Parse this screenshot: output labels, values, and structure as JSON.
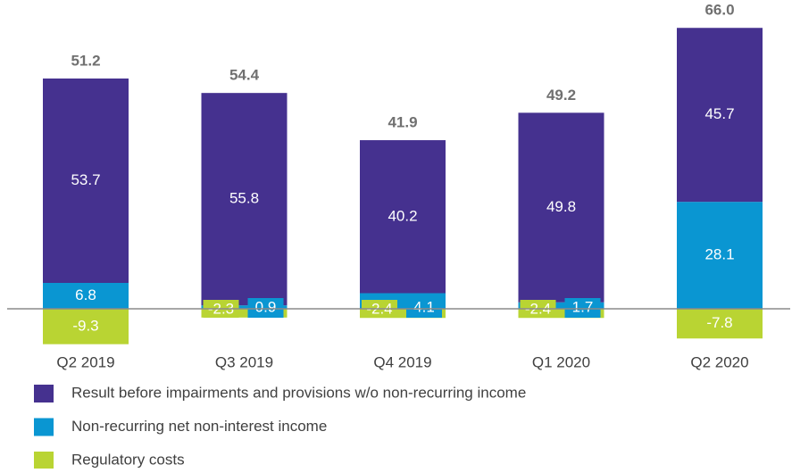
{
  "chart_data": {
    "type": "bar",
    "stacked": true,
    "categories": [
      "Q2 2019",
      "Q3 2019",
      "Q4 2019",
      "Q1 2020",
      "Q2 2020"
    ],
    "totals": [
      51.2,
      54.4,
      41.9,
      49.2,
      66.0
    ],
    "series": [
      {
        "name": "Result before impairments and provisions w/o non-recurring income",
        "color": "#45318f",
        "values": [
          53.7,
          55.8,
          40.2,
          49.8,
          45.7
        ]
      },
      {
        "name": "Non-recurring net non-interest income",
        "color": "#0a96d2",
        "values": [
          6.8,
          0.9,
          4.1,
          1.7,
          28.1
        ]
      },
      {
        "name": "Regulatory costs",
        "color": "#b9d433",
        "values": [
          -9.3,
          -2.3,
          -2.4,
          -2.4,
          -7.8
        ]
      }
    ],
    "total_labels": [
      "51.2",
      "54.4",
      "41.9",
      "49.2",
      "66.0"
    ]
  }
}
